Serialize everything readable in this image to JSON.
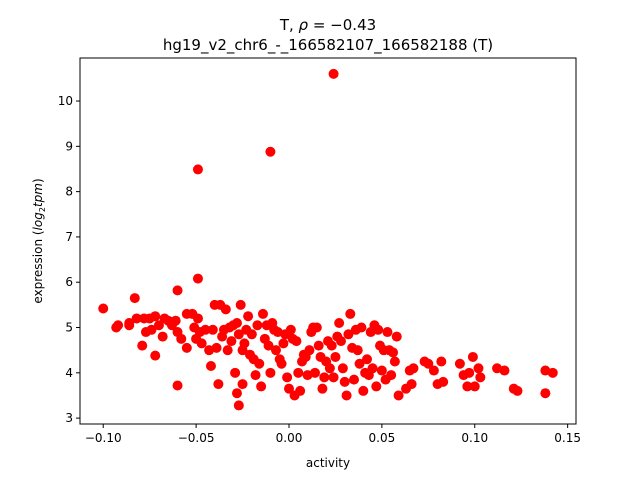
{
  "chart_data": {
    "type": "scatter",
    "title_line1_prefix": "T, ",
    "title_rho": "ρ",
    "title_eq": " = −0.43",
    "title_line2": "hg19_v2_chr6_-_166582107_166582188 (T)",
    "xlabel": "activity",
    "ylabel_prefix": "expression (",
    "ylabel_log": "log",
    "ylabel_sub": "2",
    "ylabel_tpm": "tpm",
    "ylabel_suffix": ")",
    "xlim": [
      -0.1125,
      0.1545
    ],
    "ylim": [
      2.87,
      10.95
    ],
    "xticks": [
      -0.1,
      -0.05,
      0.0,
      0.05,
      0.1,
      0.15
    ],
    "xtick_labels": [
      "−0.10",
      "−0.05",
      "0.00",
      "0.05",
      "0.10",
      "0.15"
    ],
    "yticks": [
      3,
      4,
      5,
      6,
      7,
      8,
      9,
      10
    ],
    "ytick_labels": [
      "3",
      "4",
      "5",
      "6",
      "7",
      "8",
      "9",
      "10"
    ],
    "grid": false,
    "color": "#ff0000",
    "points": [
      [
        0.024,
        10.6
      ],
      [
        -0.01,
        8.88
      ],
      [
        -0.049,
        8.49
      ],
      [
        -0.049,
        6.08
      ],
      [
        -0.06,
        5.82
      ],
      [
        -0.083,
        5.65
      ],
      [
        -0.1,
        5.42
      ],
      [
        -0.093,
        5.0
      ],
      [
        -0.092,
        5.05
      ],
      [
        -0.086,
        5.05
      ],
      [
        -0.086,
        5.1
      ],
      [
        -0.082,
        5.2
      ],
      [
        -0.079,
        4.6
      ],
      [
        -0.078,
        5.2
      ],
      [
        -0.077,
        4.9
      ],
      [
        -0.075,
        5.2
      ],
      [
        -0.074,
        4.95
      ],
      [
        -0.072,
        5.25
      ],
      [
        -0.072,
        4.38
      ],
      [
        -0.07,
        5.05
      ],
      [
        -0.068,
        4.8
      ],
      [
        -0.067,
        5.2
      ],
      [
        -0.065,
        5.15
      ],
      [
        -0.063,
        5.05
      ],
      [
        -0.061,
        5.15
      ],
      [
        -0.06,
        4.9
      ],
      [
        -0.06,
        3.72
      ],
      [
        -0.058,
        4.75
      ],
      [
        -0.055,
        5.3
      ],
      [
        -0.055,
        4.55
      ],
      [
        -0.052,
        5.3
      ],
      [
        -0.051,
        5.0
      ],
      [
        -0.05,
        4.75
      ],
      [
        -0.049,
        5.2
      ],
      [
        -0.048,
        4.9
      ],
      [
        -0.047,
        4.65
      ],
      [
        -0.045,
        4.95
      ],
      [
        -0.043,
        4.5
      ],
      [
        -0.042,
        4.15
      ],
      [
        -0.041,
        4.95
      ],
      [
        -0.04,
        5.5
      ],
      [
        -0.039,
        4.55
      ],
      [
        -0.038,
        3.75
      ],
      [
        -0.037,
        5.5
      ],
      [
        -0.036,
        4.8
      ],
      [
        -0.035,
        4.95
      ],
      [
        -0.034,
        5.4
      ],
      [
        -0.033,
        4.5
      ],
      [
        -0.032,
        5.0
      ],
      [
        -0.031,
        4.7
      ],
      [
        -0.03,
        5.05
      ],
      [
        -0.029,
        4.0
      ],
      [
        -0.028,
        5.1
      ],
      [
        -0.028,
        3.55
      ],
      [
        -0.027,
        4.85
      ],
      [
        -0.027,
        3.28
      ],
      [
        -0.026,
        5.5
      ],
      [
        -0.025,
        4.5
      ],
      [
        -0.025,
        3.75
      ],
      [
        -0.024,
        4.65
      ],
      [
        -0.023,
        4.95
      ],
      [
        -0.022,
        5.25
      ],
      [
        -0.021,
        4.4
      ],
      [
        -0.02,
        4.85
      ],
      [
        -0.019,
        4.3
      ],
      [
        -0.018,
        3.95
      ],
      [
        -0.017,
        5.05
      ],
      [
        -0.016,
        4.2
      ],
      [
        -0.015,
        3.7
      ],
      [
        -0.014,
        5.3
      ],
      [
        -0.013,
        4.75
      ],
      [
        -0.012,
        5.05
      ],
      [
        -0.011,
        4.6
      ],
      [
        -0.01,
        4.0
      ],
      [
        -0.009,
        5.1
      ],
      [
        -0.008,
        4.95
      ],
      [
        -0.007,
        4.5
      ],
      [
        -0.006,
        4.9
      ],
      [
        -0.005,
        4.3
      ],
      [
        -0.004,
        4.2
      ],
      [
        -0.003,
        4.65
      ],
      [
        -0.002,
        4.85
      ],
      [
        -0.001,
        3.9
      ],
      [
        0.0,
        3.65
      ],
      [
        0.001,
        4.95
      ],
      [
        0.002,
        4.75
      ],
      [
        0.003,
        3.5
      ],
      [
        0.004,
        4.7
      ],
      [
        0.005,
        4.0
      ],
      [
        0.006,
        3.6
      ],
      [
        0.007,
        4.25
      ],
      [
        0.008,
        4.4
      ],
      [
        0.009,
        4.35
      ],
      [
        0.01,
        3.95
      ],
      [
        0.011,
        4.5
      ],
      [
        0.012,
        4.9
      ],
      [
        0.013,
        5.0
      ],
      [
        0.014,
        4.0
      ],
      [
        0.015,
        5.0
      ],
      [
        0.016,
        4.6
      ],
      [
        0.017,
        4.35
      ],
      [
        0.018,
        3.65
      ],
      [
        0.019,
        3.9
      ],
      [
        0.02,
        4.25
      ],
      [
        0.021,
        4.7
      ],
      [
        0.022,
        4.1
      ],
      [
        0.023,
        4.6
      ],
      [
        0.024,
        3.9
      ],
      [
        0.025,
        4.35
      ],
      [
        0.026,
        4.8
      ],
      [
        0.027,
        5.1
      ],
      [
        0.028,
        4.7
      ],
      [
        0.029,
        4.1
      ],
      [
        0.03,
        3.8
      ],
      [
        0.031,
        3.5
      ],
      [
        0.032,
        4.85
      ],
      [
        0.033,
        5.3
      ],
      [
        0.034,
        4.55
      ],
      [
        0.035,
        3.85
      ],
      [
        0.036,
        4.95
      ],
      [
        0.037,
        4.5
      ],
      [
        0.038,
        4.2
      ],
      [
        0.039,
        5.0
      ],
      [
        0.04,
        3.6
      ],
      [
        0.041,
        4.0
      ],
      [
        0.042,
        4.3
      ],
      [
        0.043,
        3.95
      ],
      [
        0.044,
        4.9
      ],
      [
        0.045,
        4.1
      ],
      [
        0.046,
        5.05
      ],
      [
        0.047,
        3.7
      ],
      [
        0.048,
        4.95
      ],
      [
        0.049,
        4.6
      ],
      [
        0.05,
        4.05
      ],
      [
        0.051,
        4.5
      ],
      [
        0.052,
        3.85
      ],
      [
        0.053,
        4.9
      ],
      [
        0.054,
        4.5
      ],
      [
        0.055,
        3.95
      ],
      [
        0.056,
        4.45
      ],
      [
        0.057,
        4.25
      ],
      [
        0.058,
        4.8
      ],
      [
        0.059,
        3.5
      ],
      [
        0.063,
        3.65
      ],
      [
        0.065,
        4.05
      ],
      [
        0.066,
        3.75
      ],
      [
        0.067,
        4.1
      ],
      [
        0.073,
        4.25
      ],
      [
        0.075,
        4.2
      ],
      [
        0.078,
        4.05
      ],
      [
        0.08,
        3.75
      ],
      [
        0.082,
        4.25
      ],
      [
        0.083,
        3.8
      ],
      [
        0.092,
        4.2
      ],
      [
        0.094,
        3.95
      ],
      [
        0.096,
        3.7
      ],
      [
        0.097,
        4.0
      ],
      [
        0.099,
        4.35
      ],
      [
        0.1,
        3.7
      ],
      [
        0.102,
        4.1
      ],
      [
        0.103,
        3.9
      ],
      [
        0.112,
        4.1
      ],
      [
        0.116,
        4.05
      ],
      [
        0.121,
        3.65
      ],
      [
        0.123,
        3.6
      ],
      [
        0.138,
        4.05
      ],
      [
        0.138,
        3.55
      ],
      [
        0.142,
        4.0
      ]
    ]
  }
}
